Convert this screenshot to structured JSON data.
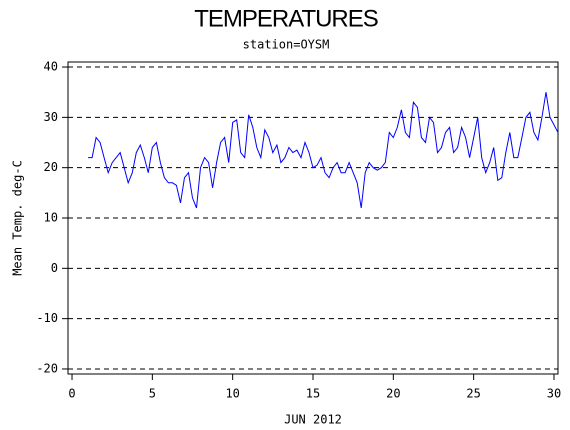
{
  "chart_data": {
    "type": "line",
    "title": "TEMPERATURES",
    "subtitle": "station=OYSM",
    "x_label": "JUN 2012",
    "y_label": "Mean Temp. deg-C",
    "xlim": [
      -0.25,
      30.25
    ],
    "xticks": [
      0,
      5,
      10,
      15,
      20,
      25,
      30
    ],
    "ylim": [
      -21,
      41
    ],
    "yticks": [
      -20,
      -10,
      0,
      10,
      20,
      30,
      40
    ],
    "grid": true,
    "x": [
      1,
      1.25,
      1.5,
      1.75,
      2,
      2.25,
      2.5,
      2.75,
      3,
      3.25,
      3.5,
      3.75,
      4,
      4.25,
      4.5,
      4.75,
      5,
      5.25,
      5.5,
      5.75,
      6,
      6.25,
      6.5,
      6.75,
      7,
      7.25,
      7.5,
      7.75,
      8,
      8.25,
      8.5,
      8.75,
      9,
      9.25,
      9.5,
      9.75,
      10,
      10.25,
      10.5,
      10.75,
      11,
      11.25,
      11.5,
      11.75,
      12,
      12.25,
      12.5,
      12.75,
      13,
      13.25,
      13.5,
      13.75,
      14,
      14.25,
      14.5,
      14.75,
      15,
      15.25,
      15.5,
      15.75,
      16,
      16.25,
      16.5,
      16.75,
      17,
      17.25,
      17.5,
      17.75,
      18,
      18.25,
      18.5,
      18.75,
      19,
      19.25,
      19.5,
      19.75,
      20,
      20.25,
      20.5,
      20.75,
      21,
      21.25,
      21.5,
      21.75,
      22,
      22.25,
      22.5,
      22.75,
      23,
      23.25,
      23.5,
      23.75,
      24,
      24.25,
      24.5,
      24.75,
      25,
      25.25,
      25.5,
      25.75,
      26,
      26.25,
      26.5,
      26.75,
      27,
      27.25,
      27.5,
      27.75,
      28,
      28.25,
      28.5,
      28.75,
      29,
      29.25,
      29.5,
      29.75,
      30,
      30.25
    ],
    "series": [
      {
        "name": "Mean Temp",
        "color": "#0000ff",
        "values": [
          22,
          22,
          26,
          25,
          22,
          19,
          21,
          22,
          23,
          20,
          17,
          19,
          23,
          24.5,
          22,
          19,
          24,
          25,
          21,
          18,
          17,
          17,
          16.5,
          13,
          18,
          19,
          14,
          12,
          20,
          22,
          21,
          16,
          21,
          25,
          26,
          21,
          29,
          29.5,
          23,
          22,
          30.5,
          28,
          24,
          22,
          27.5,
          26,
          23,
          24.5,
          21,
          22,
          24,
          23,
          23.5,
          22,
          25,
          23,
          20,
          20.5,
          22,
          19,
          18,
          20,
          21,
          19,
          19,
          21,
          19,
          17,
          12,
          19,
          21,
          20,
          19.5,
          20,
          21,
          27,
          26,
          28,
          31.5,
          27,
          26,
          33,
          32,
          26,
          25,
          30,
          29,
          23,
          24,
          27,
          28,
          23,
          24,
          28,
          26,
          22,
          26,
          30,
          22,
          19,
          21,
          24,
          17.5,
          18,
          23,
          27,
          22,
          22,
          26,
          30,
          31,
          27,
          25.5,
          30,
          35,
          30,
          28.5,
          27
        ]
      }
    ]
  }
}
